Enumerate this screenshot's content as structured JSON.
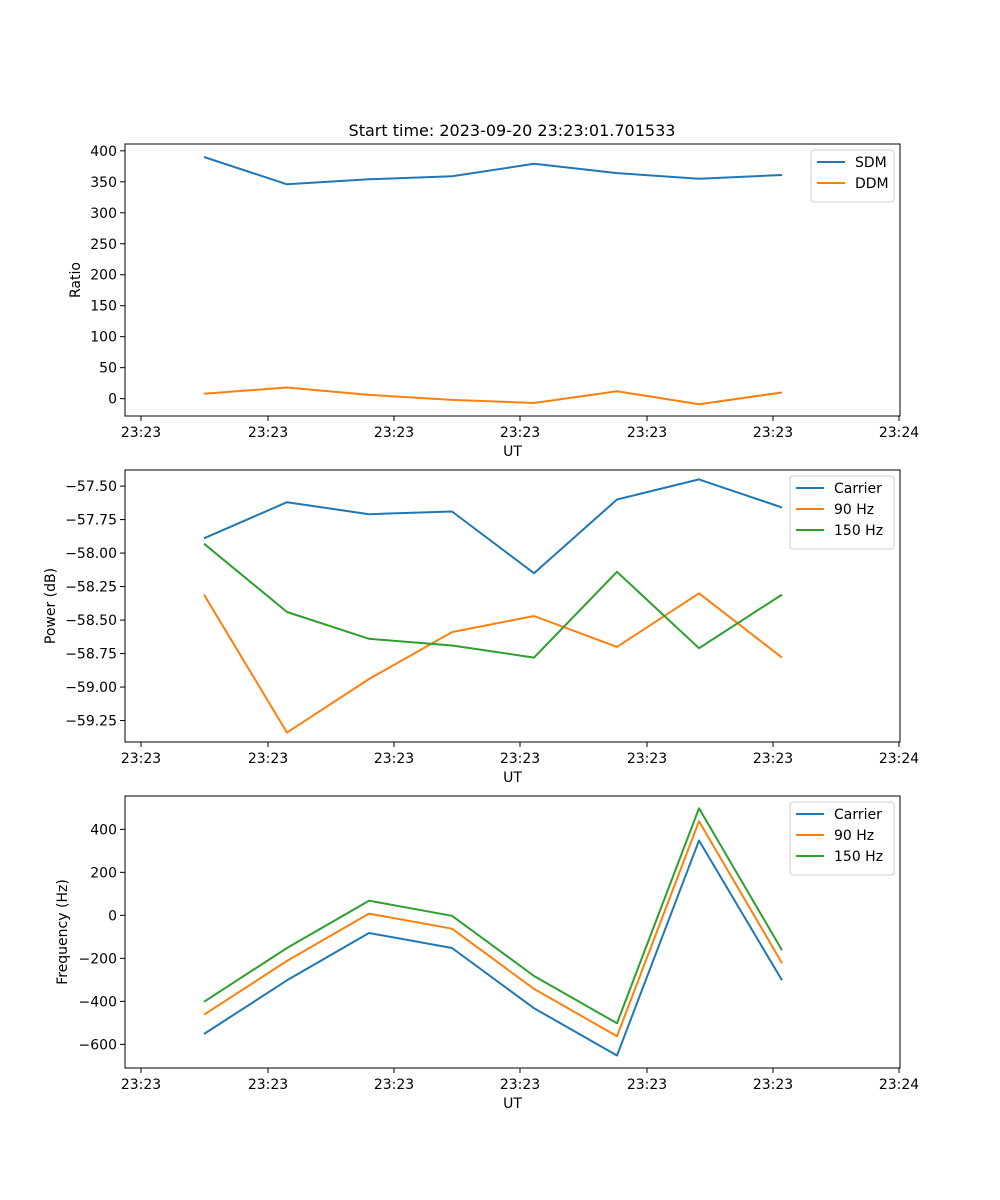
{
  "chart_data": [
    {
      "type": "line",
      "title": "Start time: 2023-09-20 23:23:01.701533",
      "xlabel": "UT",
      "ylabel": "Ratio",
      "x_tick_labels": [
        "23:23",
        "23:23",
        "23:23",
        "23:23",
        "23:23",
        "23:23",
        "23:24"
      ],
      "y_ticks": [
        0,
        50,
        100,
        150,
        200,
        250,
        300,
        350,
        400
      ],
      "ylim": [
        -28,
        411
      ],
      "legend_loc": "upper right",
      "grid": false,
      "series": [
        {
          "name": "SDM",
          "color": "#1f77b4",
          "values": [
            390,
            346,
            354,
            359,
            379,
            364,
            355,
            361
          ]
        },
        {
          "name": "DDM",
          "color": "#ff7f0e",
          "values": [
            8,
            18,
            6,
            -2,
            -7,
            12,
            -9,
            10
          ]
        }
      ]
    },
    {
      "type": "line",
      "title": "",
      "xlabel": "UT",
      "ylabel": "Power (dB)",
      "x_tick_labels": [
        "23:23",
        "23:23",
        "23:23",
        "23:23",
        "23:23",
        "23:23",
        "23:24"
      ],
      "y_ticks": [
        -59.25,
        -59.0,
        -58.75,
        -58.5,
        -58.25,
        -58.0,
        -57.75,
        -57.5
      ],
      "y_tick_labels": [
        "−59.25",
        "−59.00",
        "−58.75",
        "−58.50",
        "−58.25",
        "−58.00",
        "−57.75",
        "−57.50"
      ],
      "ylim": [
        -59.41,
        -57.38
      ],
      "legend_loc": "upper right",
      "grid": false,
      "series": [
        {
          "name": "Carrier",
          "color": "#1f77b4",
          "values": [
            -57.89,
            -57.62,
            -57.71,
            -57.69,
            -58.15,
            -57.6,
            -57.45,
            -57.66
          ]
        },
        {
          "name": "90 Hz",
          "color": "#ff7f0e",
          "values": [
            -58.31,
            -59.34,
            -58.94,
            -58.59,
            -58.47,
            -58.7,
            -58.3,
            -58.78
          ]
        },
        {
          "name": "150 Hz",
          "color": "#2ca02c",
          "values": [
            -57.93,
            -58.44,
            -58.64,
            -58.69,
            -58.78,
            -58.14,
            -58.71,
            -58.31
          ]
        }
      ]
    },
    {
      "type": "line",
      "title": "",
      "xlabel": "UT",
      "ylabel": "Frequency (Hz)",
      "x_tick_labels": [
        "23:23",
        "23:23",
        "23:23",
        "23:23",
        "23:23",
        "23:23",
        "23:24"
      ],
      "y_ticks": [
        -600,
        -400,
        -200,
        0,
        200,
        400
      ],
      "y_tick_labels": [
        "−600",
        "−400",
        "−200",
        "0",
        "200",
        "400"
      ],
      "ylim": [
        -710,
        555
      ],
      "legend_loc": "upper right",
      "grid": false,
      "series": [
        {
          "name": "Carrier",
          "color": "#1f77b4",
          "values": [
            -552,
            -302,
            -82,
            -152,
            -432,
            -652,
            348,
            -302
          ]
        },
        {
          "name": "90 Hz",
          "color": "#ff7f0e",
          "values": [
            -462,
            -212,
            8,
            -62,
            -342,
            -562,
            438,
            -222
          ]
        },
        {
          "name": "150 Hz",
          "color": "#2ca02c",
          "values": [
            -402,
            -152,
            68,
            -2,
            -282,
            -502,
            498,
            -162
          ]
        }
      ]
    }
  ]
}
